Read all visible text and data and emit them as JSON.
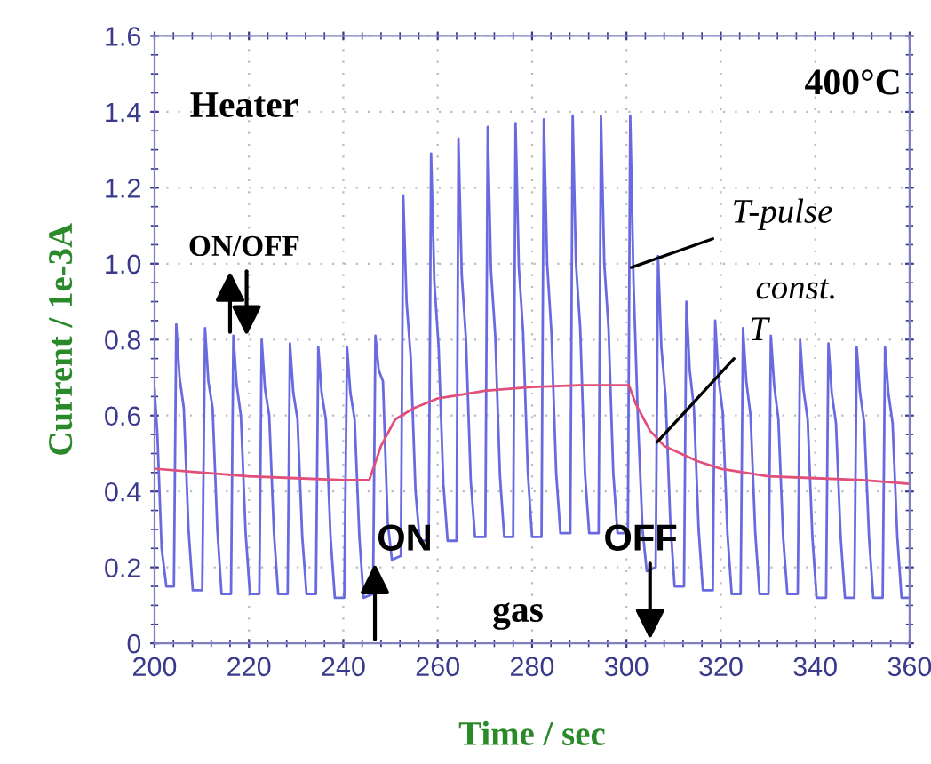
{
  "chart_data": {
    "type": "line",
    "xlabel": "Time / sec",
    "ylabel": "Current / 1e-3A",
    "xlim": [
      200,
      360
    ],
    "ylim": [
      0,
      1.6
    ],
    "xticks": [
      200,
      220,
      240,
      260,
      280,
      300,
      320,
      340,
      360
    ],
    "yticks": [
      0,
      0.2,
      0.4,
      0.6,
      0.8,
      {
        "value": 1,
        "label": "1.0"
      },
      1.2,
      1.4,
      1.6
    ],
    "grid": true,
    "marker": "none",
    "line_style": "solid",
    "annotations": [
      "400°C",
      "Heater",
      "ON/OFF",
      {
        "text": "T-pulse",
        "x": 301,
        "y": 0.99
      },
      "const.",
      {
        "text": "T",
        "x": 306.5,
        "y": 0.53
      },
      "ON",
      "gas",
      "OFF"
    ],
    "series": [
      {
        "color": "#6a6ae0",
        "x": [
          200,
          200.6,
          201.5,
          202.5,
          204.1,
          204.6,
          205.3,
          206.2,
          207.2,
          208.1,
          210.1,
          210.7,
          211.4,
          212.3,
          213.3,
          214.2,
          216.2,
          216.7,
          217.4,
          218.3,
          219.3,
          220.2,
          222.2,
          222.7,
          223.4,
          224.3,
          225.3,
          226.2,
          228.2,
          228.7,
          229.4,
          230.3,
          231.3,
          232.2,
          234.2,
          234.7,
          235.4,
          236.3,
          237.3,
          238.2,
          240.2,
          240.8,
          241.5,
          242.4,
          243.4,
          244.3,
          246.3,
          246.8,
          247.5,
          248.4,
          249.4,
          250.3,
          252.2,
          252.7,
          253.4,
          254.3,
          255.3,
          256.2,
          258.1,
          258.6,
          259.3,
          260.2,
          261.2,
          262.1,
          264.0,
          264.4,
          265.1,
          266.0,
          267.0,
          267.9,
          270.1,
          270.6,
          271.3,
          272.2,
          273.2,
          274.1,
          276.0,
          276.5,
          277.2,
          278.1,
          279.1,
          280.0,
          282.0,
          282.5,
          283.2,
          284.1,
          285.1,
          286.0,
          288.1,
          288.6,
          289.3,
          290.2,
          291.2,
          292.1,
          294.1,
          294.6,
          295.3,
          296.2,
          297.2,
          298.1,
          300.3,
          300.8,
          301.5,
          302.4,
          303.4,
          304.3,
          306.2,
          306.7,
          307.4,
          308.3,
          309.3,
          310.2,
          312.2,
          312.7,
          313.4,
          314.3,
          315.3,
          316.2,
          318.3,
          318.8,
          319.5,
          320.4,
          321.4,
          322.3,
          324.2,
          324.7,
          325.4,
          326.3,
          327.3,
          328.2,
          330.1,
          330.6,
          331.3,
          332.2,
          333.2,
          334.1,
          336.3,
          336.8,
          337.5,
          338.4,
          339.4,
          340.3,
          342.3,
          342.8,
          343.5,
          344.4,
          345.4,
          346.3,
          348.3,
          348.8,
          349.5,
          350.4,
          351.4,
          352.3,
          354.3,
          354.8,
          355.5,
          356.4,
          357.4,
          358.3,
          360
        ],
        "values": [
          0.67,
          0.55,
          0.25,
          0.15,
          0.15,
          0.84,
          0.7,
          0.62,
          0.3,
          0.14,
          0.14,
          0.83,
          0.69,
          0.62,
          0.3,
          0.13,
          0.13,
          0.81,
          0.68,
          0.6,
          0.29,
          0.13,
          0.13,
          0.8,
          0.67,
          0.6,
          0.29,
          0.13,
          0.13,
          0.79,
          0.66,
          0.59,
          0.28,
          0.13,
          0.13,
          0.78,
          0.66,
          0.59,
          0.28,
          0.12,
          0.12,
          0.78,
          0.66,
          0.59,
          0.28,
          0.12,
          0.13,
          0.81,
          0.72,
          0.69,
          0.32,
          0.22,
          0.23,
          1.18,
          0.9,
          0.75,
          0.4,
          0.27,
          0.27,
          1.29,
          0.95,
          0.78,
          0.42,
          0.27,
          0.27,
          1.33,
          0.97,
          0.8,
          0.43,
          0.28,
          0.28,
          1.36,
          0.98,
          0.81,
          0.44,
          0.28,
          0.28,
          1.37,
          0.99,
          0.82,
          0.45,
          0.28,
          0.28,
          1.38,
          1.0,
          0.82,
          0.45,
          0.29,
          0.29,
          1.39,
          1.0,
          0.83,
          0.45,
          0.29,
          0.29,
          1.39,
          1.0,
          0.83,
          0.45,
          0.29,
          0.29,
          1.39,
          0.95,
          0.6,
          0.3,
          0.19,
          0.2,
          1.02,
          0.78,
          0.65,
          0.32,
          0.15,
          0.15,
          0.9,
          0.72,
          0.62,
          0.3,
          0.14,
          0.14,
          0.85,
          0.7,
          0.61,
          0.29,
          0.13,
          0.13,
          0.83,
          0.69,
          0.6,
          0.29,
          0.13,
          0.13,
          0.81,
          0.68,
          0.59,
          0.28,
          0.13,
          0.13,
          0.8,
          0.67,
          0.59,
          0.28,
          0.12,
          0.12,
          0.79,
          0.66,
          0.58,
          0.28,
          0.12,
          0.12,
          0.78,
          0.66,
          0.58,
          0.28,
          0.12,
          0.12,
          0.78,
          0.66,
          0.58,
          0.28,
          0.12,
          0.12
        ]
      },
      {
        "color": "#e0507a",
        "x": [
          200,
          210,
          220,
          230,
          240,
          245.5,
          248,
          251,
          255,
          260,
          270,
          280,
          290,
          300.5,
          302,
          305,
          308,
          315,
          320,
          330,
          340,
          350,
          360
        ],
        "values": [
          0.46,
          0.45,
          0.44,
          0.435,
          0.43,
          0.43,
          0.52,
          0.59,
          0.62,
          0.645,
          0.665,
          0.675,
          0.68,
          0.68,
          0.63,
          0.56,
          0.52,
          0.48,
          0.46,
          0.44,
          0.435,
          0.43,
          0.42
        ]
      }
    ]
  }
}
